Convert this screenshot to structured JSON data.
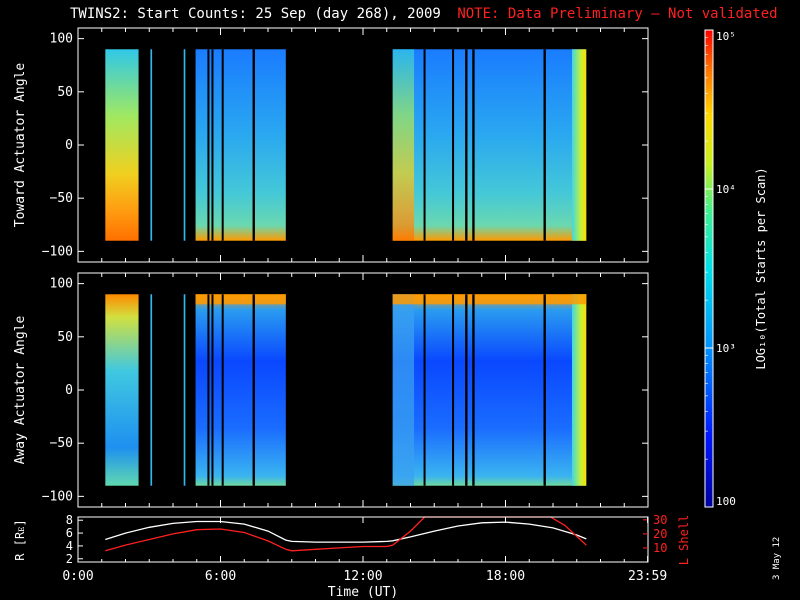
{
  "header": {
    "title": "TWINS2: Start Counts: 25 Sep (day 268), 2009",
    "note": "NOTE: Data Preliminary – Not validated",
    "note_color": "#ff2020"
  },
  "footer": {
    "date_stamp": "3 May 12"
  },
  "colors": {
    "axis": "#ffffff",
    "lshell": "#ff2020",
    "radius": "#ffffff"
  },
  "chart_data": [
    {
      "type": "heatmap",
      "panel": "toward",
      "ylabel": "Toward Actuator Angle",
      "ylim": [
        -110,
        110
      ],
      "yticks": [
        100,
        50,
        0,
        -50,
        -100
      ],
      "xlim": [
        0,
        24
      ],
      "data_ylim": [
        -90,
        90
      ],
      "data_intervals_h": [
        [
          1.15,
          2.55
        ],
        [
          3.05,
          3.12
        ],
        [
          4.45,
          4.52
        ],
        [
          4.95,
          8.75
        ],
        [
          13.25,
          21.4
        ]
      ],
      "gaps_h": [
        [
          5.45,
          5.5
        ],
        [
          5.62,
          5.67
        ],
        [
          6.05,
          6.1
        ],
        [
          7.35,
          7.45
        ],
        [
          14.55,
          14.62
        ],
        [
          15.75,
          15.8
        ],
        [
          16.3,
          16.4
        ],
        [
          16.6,
          16.7
        ],
        [
          19.6,
          19.7
        ]
      ]
    },
    {
      "type": "heatmap",
      "panel": "away",
      "ylabel": "Away Actuator Angle",
      "ylim": [
        -110,
        110
      ],
      "yticks": [
        100,
        50,
        0,
        -50,
        -100
      ],
      "xlim": [
        0,
        24
      ],
      "data_ylim": [
        -90,
        90
      ],
      "data_intervals_h": [
        [
          1.15,
          2.55
        ],
        [
          3.05,
          3.12
        ],
        [
          4.45,
          4.52
        ],
        [
          4.95,
          8.75
        ],
        [
          13.25,
          21.4
        ]
      ],
      "gaps_h": [
        [
          5.45,
          5.5
        ],
        [
          5.62,
          5.67
        ],
        [
          6.05,
          6.1
        ],
        [
          7.35,
          7.45
        ],
        [
          14.55,
          14.62
        ],
        [
          15.75,
          15.8
        ],
        [
          16.3,
          16.4
        ],
        [
          16.6,
          16.7
        ],
        [
          19.6,
          19.7
        ]
      ]
    },
    {
      "type": "line",
      "panel": "ephemeris",
      "xlabel": "Time (UT)",
      "xticks": [
        "0:00",
        "6:00",
        "12:00",
        "18:00",
        "23:59"
      ],
      "xtick_hours": [
        0,
        6,
        12,
        18,
        23.983
      ],
      "y_left_label": "R [Rᴇ]",
      "y_left_ticks": [
        8,
        6,
        4,
        2
      ],
      "y_left_lim": [
        1.5,
        8.5
      ],
      "y_right_label": "L Shell",
      "y_right_ticks": [
        30,
        20,
        10
      ],
      "y_right_lim": [
        0,
        32
      ],
      "series": [
        {
          "axis": "left",
          "x": [
            1.15,
            2,
            3,
            4,
            5,
            6,
            7,
            8,
            8.75,
            9,
            10,
            11,
            12,
            13,
            13.25,
            14,
            15,
            16,
            17,
            18,
            19,
            20,
            21,
            21.4
          ],
          "y": [
            5.0,
            6.0,
            6.9,
            7.5,
            7.8,
            7.8,
            7.4,
            6.3,
            4.9,
            4.7,
            4.6,
            4.6,
            4.6,
            4.7,
            4.8,
            5.4,
            6.3,
            7.1,
            7.6,
            7.7,
            7.4,
            6.8,
            5.7,
            5.1
          ]
        },
        {
          "axis": "right",
          "x": [
            1.15,
            2,
            3,
            4,
            5,
            6,
            7,
            8,
            8.75,
            9,
            10,
            11,
            12,
            13,
            13.25,
            14,
            14.6,
            19.9,
            20.5,
            21.4
          ],
          "y": [
            8,
            12,
            16,
            20,
            23,
            23.5,
            21,
            15,
            9,
            8,
            9,
            10,
            11,
            11,
            12,
            22,
            32,
            32,
            26,
            12
          ]
        }
      ]
    },
    {
      "type": "heatmap",
      "panel": "colorbar",
      "label": "LOG₁₀(Total Starts per Scan)",
      "scale": "log",
      "range": [
        100,
        100000
      ],
      "ticks": [
        {
          "value": 100,
          "label": "100"
        },
        {
          "value": 1000,
          "label": "10³"
        },
        {
          "value": 10000,
          "label": "10⁴"
        },
        {
          "value": 100000,
          "label": "10⁵"
        }
      ]
    }
  ]
}
